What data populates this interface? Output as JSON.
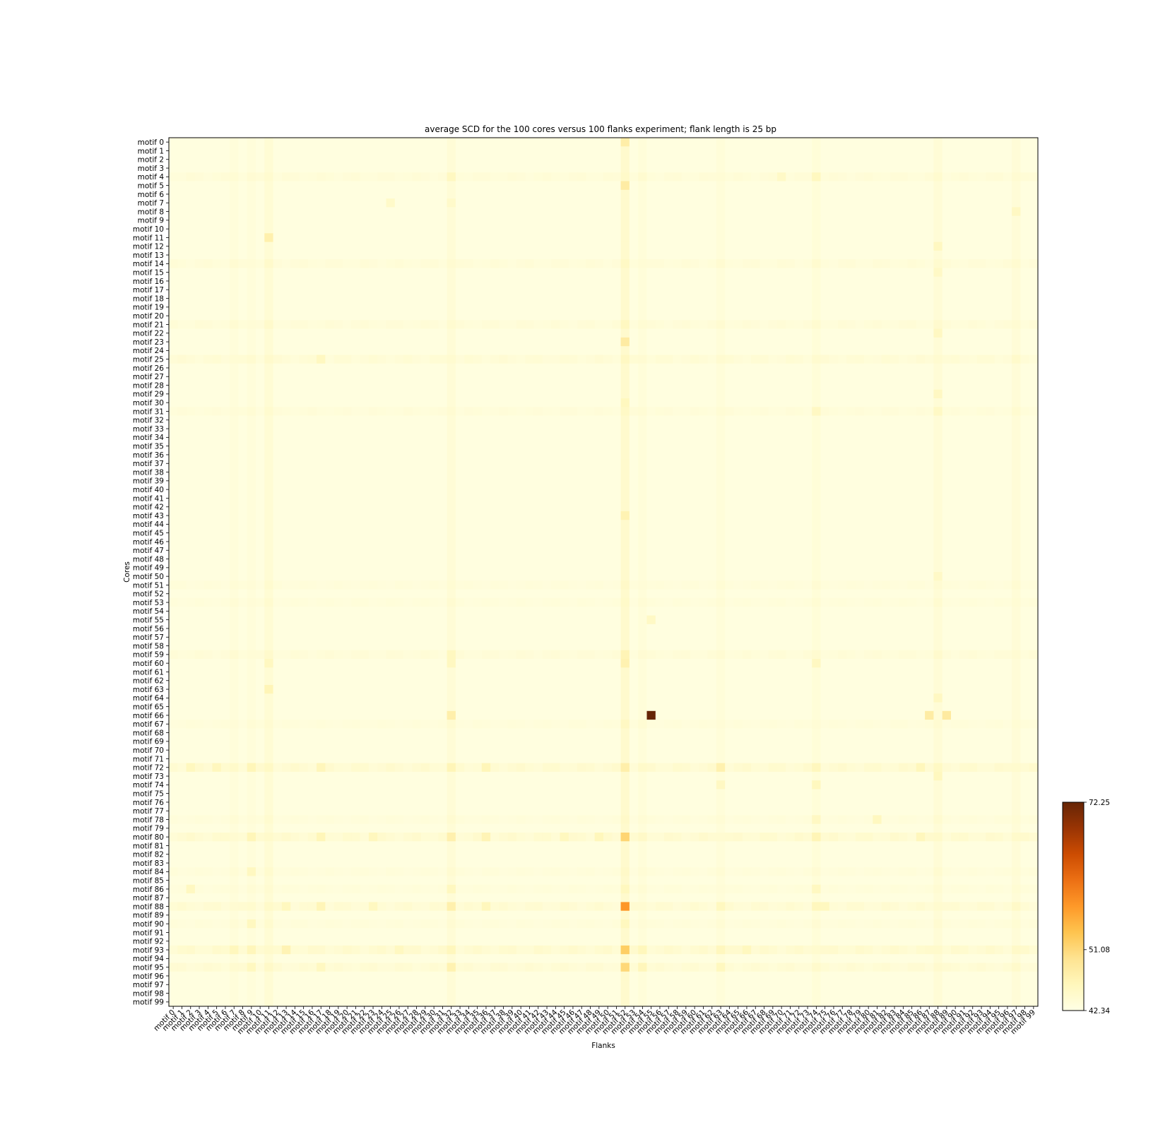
{
  "chart_data": {
    "type": "heatmap",
    "title": "average SCD for the 100 cores versus 100 flanks experiment; flank length is 25 bp",
    "xlabel": "Flanks",
    "ylabel": "Cores",
    "rows": 100,
    "cols": 100,
    "row_prefix": "motif ",
    "col_prefix": "motif ",
    "colormap": "YlOrBr",
    "colorbar": {
      "min": 42.34,
      "max": 72.25,
      "ticks": [
        "72.25",
        "51.08",
        "42.34"
      ],
      "tick_values": [
        72.25,
        51.08,
        42.34
      ]
    },
    "base_value": 42.9,
    "column_effects": [
      {
        "col": 11,
        "add": 1.0
      },
      {
        "col": 32,
        "add": 0.8
      },
      {
        "col": 52,
        "add": 1.6
      },
      {
        "col": 54,
        "add": 0.5
      },
      {
        "col": 63,
        "add": 0.5
      },
      {
        "col": 74,
        "add": 0.6
      },
      {
        "col": 88,
        "add": 0.8
      },
      {
        "col": 97,
        "add": 0.7
      },
      {
        "col": 7,
        "add": 0.4
      },
      {
        "col": 9,
        "add": 0.4
      }
    ],
    "row_effects": [
      {
        "row": 4,
        "add": 0.6
      },
      {
        "row": 14,
        "add": 0.6
      },
      {
        "row": 21,
        "add": 0.6
      },
      {
        "row": 25,
        "add": 0.8
      },
      {
        "row": 31,
        "add": 0.5
      },
      {
        "row": 59,
        "add": 0.6
      },
      {
        "row": 72,
        "add": 1.2
      },
      {
        "row": 80,
        "add": 1.2
      },
      {
        "row": 88,
        "add": 1.0
      },
      {
        "row": 93,
        "add": 1.3
      },
      {
        "row": 95,
        "add": 0.9
      },
      {
        "row": 86,
        "add": 0.4
      },
      {
        "row": 67,
        "add": 0.4
      },
      {
        "row": 51,
        "add": 0.4
      },
      {
        "row": 53,
        "add": 0.4
      },
      {
        "row": 78,
        "add": 0.4
      },
      {
        "row": 84,
        "add": 0.4
      },
      {
        "row": 90,
        "add": 0.4
      }
    ],
    "cells": [
      {
        "row": 0,
        "col": 52,
        "value": 47.8
      },
      {
        "row": 5,
        "col": 52,
        "value": 48.2
      },
      {
        "row": 11,
        "col": 11,
        "value": 47.4
      },
      {
        "row": 23,
        "col": 52,
        "value": 48.3
      },
      {
        "row": 30,
        "col": 52,
        "value": 45.8
      },
      {
        "row": 43,
        "col": 52,
        "value": 46.9
      },
      {
        "row": 59,
        "col": 52,
        "value": 46.6
      },
      {
        "row": 60,
        "col": 52,
        "value": 47.0
      },
      {
        "row": 63,
        "col": 11,
        "value": 46.5
      },
      {
        "row": 66,
        "col": 32,
        "value": 47.6
      },
      {
        "row": 66,
        "col": 55,
        "value": 72.25
      },
      {
        "row": 66,
        "col": 87,
        "value": 48.2
      },
      {
        "row": 66,
        "col": 89,
        "value": 48.5
      },
      {
        "row": 72,
        "col": 52,
        "value": 47.6
      },
      {
        "row": 72,
        "col": 63,
        "value": 47.2
      },
      {
        "row": 80,
        "col": 52,
        "value": 51.5
      },
      {
        "row": 80,
        "col": 32,
        "value": 47.3
      },
      {
        "row": 80,
        "col": 36,
        "value": 46.6
      },
      {
        "row": 86,
        "col": 52,
        "value": 45.8
      },
      {
        "row": 88,
        "col": 52,
        "value": 57.5
      },
      {
        "row": 88,
        "col": 32,
        "value": 47.4
      },
      {
        "row": 88,
        "col": 17,
        "value": 46.4
      },
      {
        "row": 88,
        "col": 36,
        "value": 46.0
      },
      {
        "row": 93,
        "col": 52,
        "value": 52.4
      },
      {
        "row": 93,
        "col": 13,
        "value": 46.8
      },
      {
        "row": 95,
        "col": 52,
        "value": 51.2
      },
      {
        "row": 95,
        "col": 32,
        "value": 47.0
      },
      {
        "row": 95,
        "col": 54,
        "value": 46.2
      },
      {
        "row": 12,
        "col": 88,
        "value": 45.6
      },
      {
        "row": 15,
        "col": 88,
        "value": 45.2
      },
      {
        "row": 22,
        "col": 88,
        "value": 45.5
      },
      {
        "row": 29,
        "col": 88,
        "value": 45.4
      },
      {
        "row": 31,
        "col": 88,
        "value": 45.3
      },
      {
        "row": 50,
        "col": 88,
        "value": 45.1
      },
      {
        "row": 64,
        "col": 88,
        "value": 45.5
      },
      {
        "row": 73,
        "col": 88,
        "value": 45.8
      },
      {
        "row": 8,
        "col": 97,
        "value": 45.4
      },
      {
        "row": 4,
        "col": 32,
        "value": 45.6
      },
      {
        "row": 4,
        "col": 74,
        "value": 45.7
      },
      {
        "row": 4,
        "col": 70,
        "value": 45.1
      },
      {
        "row": 7,
        "col": 25,
        "value": 44.9
      },
      {
        "row": 7,
        "col": 32,
        "value": 44.8
      },
      {
        "row": 55,
        "col": 55,
        "value": 45.3
      },
      {
        "row": 59,
        "col": 32,
        "value": 45.7
      },
      {
        "row": 60,
        "col": 32,
        "value": 45.6
      },
      {
        "row": 60,
        "col": 11,
        "value": 45.6
      },
      {
        "row": 60,
        "col": 74,
        "value": 45.5
      },
      {
        "row": 21,
        "col": 52,
        "value": 45.6
      },
      {
        "row": 31,
        "col": 52,
        "value": 45.2
      },
      {
        "row": 31,
        "col": 74,
        "value": 45.4
      },
      {
        "row": 67,
        "col": 52,
        "value": 45.4
      },
      {
        "row": 72,
        "col": 9,
        "value": 46.3
      },
      {
        "row": 72,
        "col": 17,
        "value": 46.2
      },
      {
        "row": 72,
        "col": 36,
        "value": 46.3
      },
      {
        "row": 72,
        "col": 86,
        "value": 46.1
      },
      {
        "row": 72,
        "col": 74,
        "value": 45.9
      },
      {
        "row": 72,
        "col": 32,
        "value": 46.4
      },
      {
        "row": 80,
        "col": 9,
        "value": 46.3
      },
      {
        "row": 80,
        "col": 17,
        "value": 46.3
      },
      {
        "row": 80,
        "col": 23,
        "value": 45.9
      },
      {
        "row": 80,
        "col": 74,
        "value": 46.5
      },
      {
        "row": 80,
        "col": 49,
        "value": 46.1
      },
      {
        "row": 80,
        "col": 45,
        "value": 45.8
      },
      {
        "row": 80,
        "col": 86,
        "value": 46.0
      },
      {
        "row": 84,
        "col": 9,
        "value": 45.6
      },
      {
        "row": 86,
        "col": 2,
        "value": 45.6
      },
      {
        "row": 86,
        "col": 32,
        "value": 45.7
      },
      {
        "row": 86,
        "col": 74,
        "value": 45.6
      },
      {
        "row": 88,
        "col": 74,
        "value": 45.9
      },
      {
        "row": 88,
        "col": 13,
        "value": 45.8
      },
      {
        "row": 88,
        "col": 23,
        "value": 45.6
      },
      {
        "row": 88,
        "col": 75,
        "value": 45.7
      },
      {
        "row": 88,
        "col": 63,
        "value": 45.7
      },
      {
        "row": 90,
        "col": 9,
        "value": 45.7
      },
      {
        "row": 90,
        "col": 52,
        "value": 45.8
      },
      {
        "row": 93,
        "col": 7,
        "value": 46.0
      },
      {
        "row": 93,
        "col": 9,
        "value": 46.2
      },
      {
        "row": 93,
        "col": 32,
        "value": 46.0
      },
      {
        "row": 93,
        "col": 54,
        "value": 46.1
      },
      {
        "row": 93,
        "col": 63,
        "value": 45.9
      },
      {
        "row": 93,
        "col": 66,
        "value": 45.8
      },
      {
        "row": 93,
        "col": 26,
        "value": 45.6
      },
      {
        "row": 95,
        "col": 9,
        "value": 45.7
      },
      {
        "row": 95,
        "col": 63,
        "value": 45.8
      },
      {
        "row": 95,
        "col": 17,
        "value": 45.6
      },
      {
        "row": 74,
        "col": 74,
        "value": 45.8
      },
      {
        "row": 74,
        "col": 63,
        "value": 45.4
      },
      {
        "row": 78,
        "col": 81,
        "value": 45.7
      },
      {
        "row": 78,
        "col": 74,
        "value": 45.4
      },
      {
        "row": 72,
        "col": 2,
        "value": 45.8
      },
      {
        "row": 72,
        "col": 5,
        "value": 45.9
      },
      {
        "row": 25,
        "col": 17,
        "value": 45.6
      },
      {
        "row": 25,
        "col": 52,
        "value": 45.4
      }
    ]
  }
}
